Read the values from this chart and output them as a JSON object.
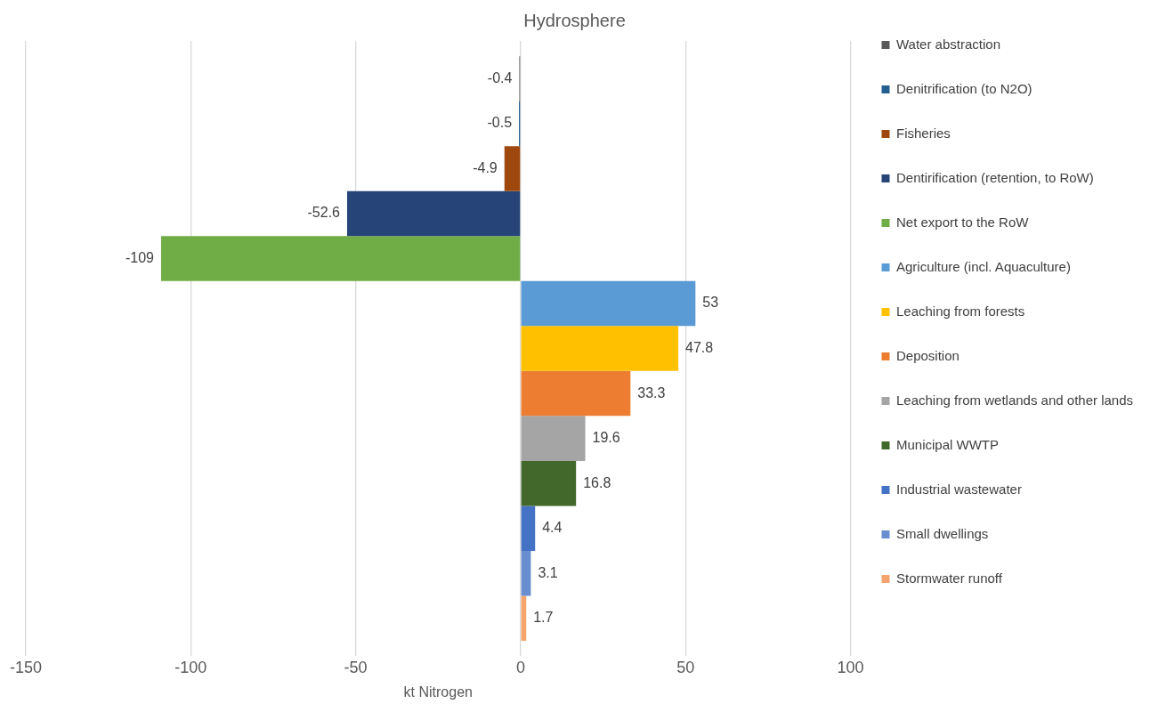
{
  "chart_data": {
    "type": "bar",
    "orientation": "horizontal",
    "title": "Hydrosphere",
    "xlabel": "kt Nitrogen",
    "categories": [
      null
    ],
    "series": [
      {
        "name": "Water abstraction",
        "color": "#5a5a5a",
        "values": [
          -0.4
        ]
      },
      {
        "name": "Denitrification (to N2O)",
        "color": "#255e91",
        "values": [
          -0.5
        ]
      },
      {
        "name": "Fisheries",
        "color": "#9e480e",
        "values": [
          -4.9
        ]
      },
      {
        "name": "Dentirification (retention, to RoW)",
        "color": "#264478",
        "values": [
          -52.6
        ]
      },
      {
        "name": "Net export to the RoW",
        "color": "#70ad47",
        "values": [
          -109
        ]
      },
      {
        "name": "Agriculture (incl. Aquaculture)",
        "color": "#5b9bd5",
        "values": [
          53
        ]
      },
      {
        "name": "Leaching from forests",
        "color": "#ffc000",
        "values": [
          47.8
        ]
      },
      {
        "name": "Deposition",
        "color": "#ed7d31",
        "values": [
          33.3
        ]
      },
      {
        "name": "Leaching from wetlands and other lands",
        "color": "#a5a5a5",
        "values": [
          19.6
        ]
      },
      {
        "name": "Municipal WWTP",
        "color": "#43682b",
        "values": [
          16.8
        ]
      },
      {
        "name": "Industrial wastewater",
        "color": "#4472c4",
        "values": [
          4.4
        ]
      },
      {
        "name": "Small dwellings",
        "color": "#698ed0",
        "values": [
          3.1
        ]
      },
      {
        "name": "Stormwater runoff",
        "color": "#f4a46c",
        "values": [
          1.7
        ]
      }
    ],
    "xlim": [
      -150,
      100
    ],
    "xticks": [
      -150,
      -100,
      -50,
      0,
      50,
      100
    ],
    "grid": "x",
    "legend": "right",
    "data_labels": true
  }
}
